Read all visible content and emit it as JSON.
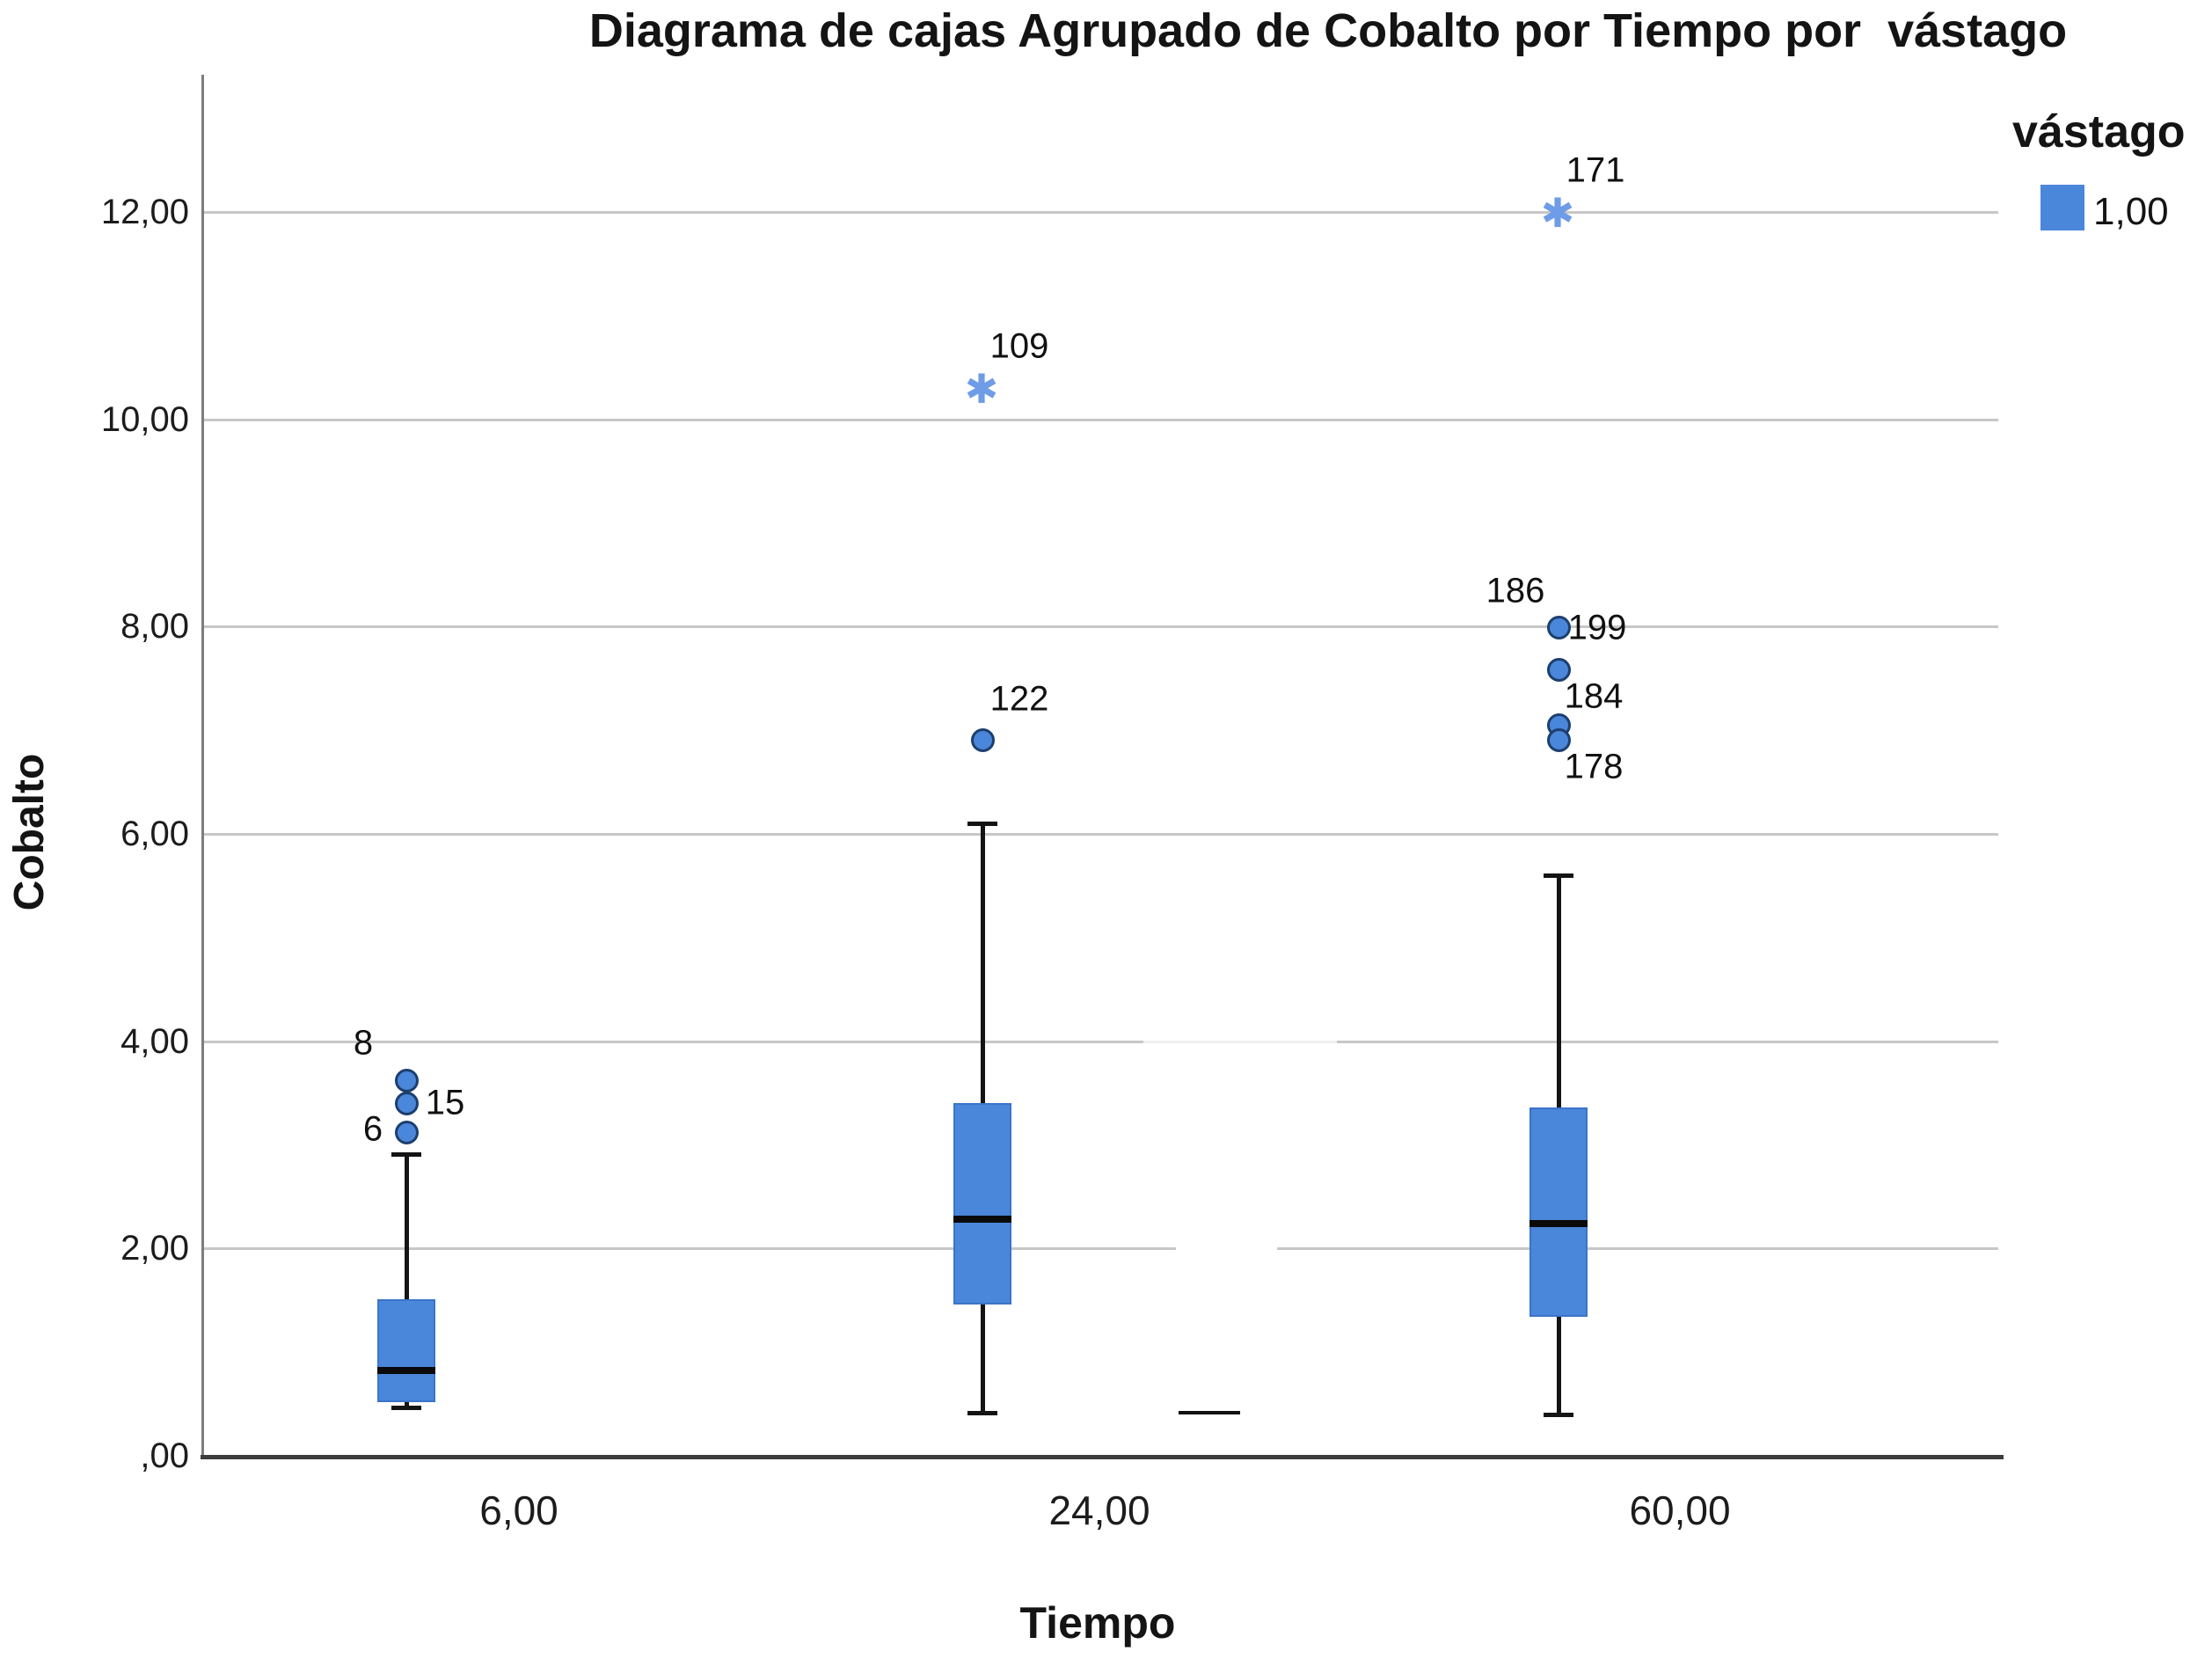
{
  "title": "Diagrama de cajas Agrupado de Cobalto por Tiempo por  vástago",
  "axes": {
    "y_label": "Cobalto",
    "x_label": "Tiempo"
  },
  "legend": {
    "header": "vástago",
    "items": [
      {
        "label": "1,00",
        "color": "#4a86d9"
      }
    ]
  },
  "chart_data": {
    "type": "boxplot",
    "value_variable": "Cobalto",
    "group_variable": "Tiempo",
    "cluster_variable": "vástago",
    "cluster_value": "1,00",
    "categories": [
      "6,00",
      "24,00",
      "60,00"
    ],
    "y_ticks": [
      {
        "value": 0,
        "label": ",00"
      },
      {
        "value": 2,
        "label": "2,00"
      },
      {
        "value": 4,
        "label": "4,00"
      },
      {
        "value": 6,
        "label": "6,00"
      },
      {
        "value": 8,
        "label": "8,00"
      },
      {
        "value": 10,
        "label": "10,00"
      },
      {
        "value": 12,
        "label": "12,00"
      }
    ],
    "ylim": [
      0,
      13.3
    ],
    "grid": "horizontal",
    "box_color": "#4a86d9",
    "legend_position": "top-right",
    "boxes": [
      {
        "category": "6,00",
        "q1": 0.52,
        "median": 0.82,
        "q3": 1.51,
        "whisker_low": 0.47,
        "whisker_high": 2.91,
        "outliers": [
          {
            "value": 3.62,
            "labels": [
              {
                "text": "8",
                "side": "above-left"
              }
            ]
          },
          {
            "value": 3.4,
            "labels": [
              {
                "text": "15",
                "side": "right"
              }
            ]
          },
          {
            "value": 3.12,
            "labels": [
              {
                "text": "6",
                "side": "left"
              }
            ]
          }
        ],
        "extremes": []
      },
      {
        "category": "24,00",
        "q1": 1.46,
        "median": 2.28,
        "q3": 3.4,
        "whisker_low": 0.42,
        "whisker_high": 6.1,
        "outliers": [
          {
            "value": 6.9,
            "labels": [
              {
                "text": "122",
                "side": "above-right"
              }
            ]
          }
        ],
        "extremes": [
          {
            "value": 10.3,
            "labels": [
              {
                "text": "109",
                "side": "above-right"
              }
            ]
          }
        ]
      },
      {
        "category": "60,00",
        "q1": 1.34,
        "median": 2.24,
        "q3": 3.36,
        "whisker_low": 0.4,
        "whisker_high": 5.6,
        "outliers": [
          {
            "value": 7.99,
            "labels": [
              {
                "text": "186",
                "side": "above-left"
              },
              {
                "text": "199",
                "side": "right"
              }
            ]
          },
          {
            "value": 7.58,
            "labels": [
              {
                "text": "184",
                "side": "below-right"
              }
            ]
          },
          {
            "value": 7.05,
            "labels": []
          },
          {
            "value": 6.9,
            "labels": [
              {
                "text": "178",
                "side": "below-right"
              }
            ]
          }
        ],
        "extremes": [
          {
            "value": 12.0,
            "labels": [
              {
                "text": "171",
                "side": "above-right"
              }
            ]
          }
        ]
      }
    ]
  }
}
